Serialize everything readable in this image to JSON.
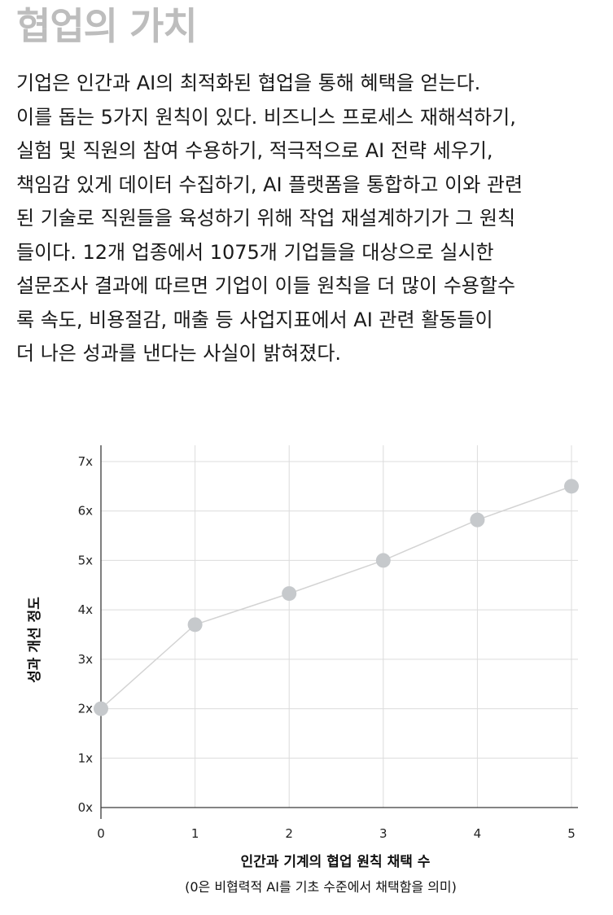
{
  "header": {
    "title": "협업의 가치"
  },
  "article": {
    "lines": [
      "기업은 인간과 AI의 최적화된 협업을 통해 혜택을 얻는다.",
      "이를 돕는 5가지 원칙이 있다. 비즈니스 프로세스 재해석하기,",
      "실험 및 직원의 참여 수용하기, 적극적으로 AI 전략 세우기,",
      "책임감 있게 데이터 수집하기, AI 플랫폼을 통합하고 이와 관련",
      "된 기술로 직원들을 육성하기 위해 작업 재설계하기가 그 원칙",
      "들이다. 12개 업종에서 1075개 기업들을 대상으로 실시한",
      "설문조사 결과에 따르면 기업이 이들 원칙을 더 많이 수용할수",
      "록 속도, 비용절감, 매출 등 사업지표에서 AI 관련 활동들이",
      "더 나은 성과를 낸다는 사실이 밝혀졌다."
    ]
  },
  "chart_data": {
    "type": "line",
    "x": [
      0,
      1,
      2,
      3,
      4,
      5
    ],
    "series": [
      {
        "name": "성과 개선 정도",
        "values": [
          2.0,
          3.7,
          4.33,
          5.0,
          5.82,
          6.5
        ]
      }
    ],
    "x_ticks": [
      "0",
      "1",
      "2",
      "3",
      "4",
      "5"
    ],
    "y_ticks": [
      "0x",
      "1x",
      "2x",
      "3x",
      "4x",
      "5x",
      "6x",
      "7x"
    ],
    "xlim": [
      0,
      5
    ],
    "ylim": [
      0,
      7
    ],
    "grid": true,
    "xlabel": "인간과 기계의 협업 원칙 채택 수",
    "xlabel_sub": "(0은 비협력적 AI를 기초 수준에서 채택함을 의미)",
    "ylabel": "성과 개선 정도",
    "colors": {
      "line": "#d3d3d3",
      "marker": "#c6c9cc",
      "grid": "#dcdcdc",
      "axis": "#3a3a3a"
    }
  }
}
